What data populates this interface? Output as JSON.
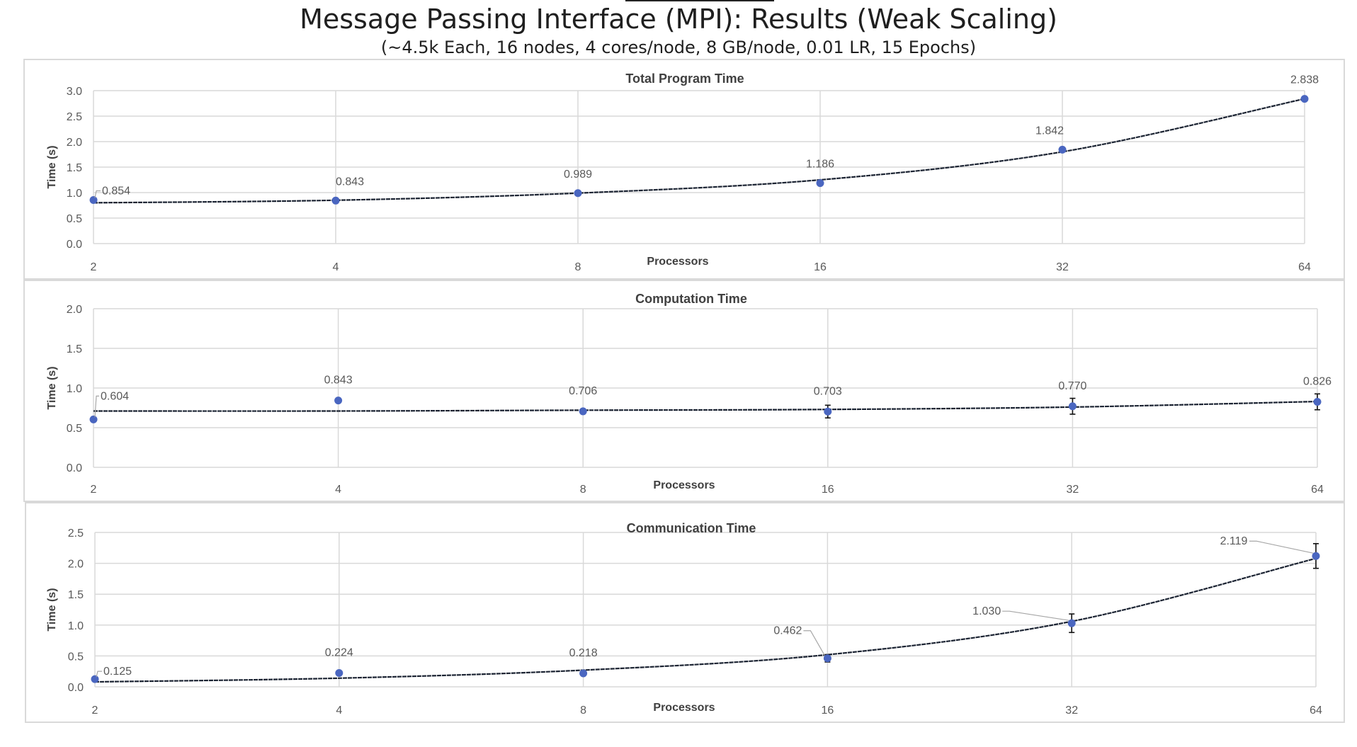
{
  "header": {
    "title": "Message Passing Interface (MPI): Results (Weak Scaling)",
    "subtitle": "(~4.5k Each, 16 nodes, 4 cores/node, 8 GB/node, 0.01 LR, 15 Epochs)"
  },
  "colors": {
    "marker": "#4a66c0",
    "trend": "#1c2433",
    "grid": "#d9d9d9",
    "text": "#595959",
    "title": "#404040",
    "frame": "#d9d9d9"
  },
  "chart_data": [
    {
      "type": "scatter",
      "title": "Total Program Time",
      "xlabel": "Processors",
      "ylabel": "Time (s)",
      "x": [
        2,
        4,
        8,
        16,
        32,
        64
      ],
      "x_tick_labels": [
        "2",
        "4",
        "8",
        "16",
        "32",
        "64"
      ],
      "y": [
        0.854,
        0.843,
        0.989,
        1.186,
        1.842,
        2.838
      ],
      "data_labels": [
        "0.854",
        "0.843",
        "0.989",
        "1.186",
        "1.842",
        "2.838"
      ],
      "y_ticks": [
        "0.0",
        "0.5",
        "1.0",
        "1.5",
        "2.0",
        "2.5",
        "3.0"
      ],
      "ylim": [
        0,
        3.0
      ],
      "x_scale": "log2",
      "trendline": [
        0.8,
        0.85,
        0.99,
        1.25,
        1.8,
        2.84
      ],
      "error_bars": [
        0,
        0,
        0,
        0,
        0,
        0
      ],
      "grid": true
    },
    {
      "type": "scatter",
      "title": "Computation Time",
      "xlabel": "Processors",
      "ylabel": "Time (s)",
      "x": [
        2,
        4,
        8,
        16,
        32,
        64
      ],
      "x_tick_labels": [
        "2",
        "4",
        "8",
        "16",
        "32",
        "64"
      ],
      "y": [
        0.604,
        0.843,
        0.706,
        0.703,
        0.77,
        0.826
      ],
      "data_labels": [
        "0.604",
        "0.843",
        "0.706",
        "0.703",
        "0.770",
        "0.826"
      ],
      "y_ticks": [
        "0.0",
        "0.5",
        "1.0",
        "1.5",
        "2.0"
      ],
      "ylim": [
        0,
        2.0
      ],
      "x_scale": "log2",
      "trendline": [
        0.71,
        0.71,
        0.72,
        0.73,
        0.76,
        0.83
      ],
      "error_bars": [
        0,
        0,
        0,
        0.08,
        0.1,
        0.1
      ],
      "grid": true
    },
    {
      "type": "scatter",
      "title": "Communication Time",
      "xlabel": "Processors",
      "ylabel": "Time (s)",
      "x": [
        2,
        4,
        8,
        16,
        32,
        64
      ],
      "x_tick_labels": [
        "2",
        "4",
        "8",
        "16",
        "32",
        "64"
      ],
      "y": [
        0.125,
        0.224,
        0.218,
        0.462,
        1.03,
        2.119
      ],
      "data_labels": [
        "0.125",
        "0.224",
        "0.218",
        "0.462",
        "1.030",
        "2.119"
      ],
      "y_ticks": [
        "0.0",
        "0.5",
        "1.0",
        "1.5",
        "2.0",
        "2.5"
      ],
      "ylim": [
        0,
        2.5
      ],
      "x_scale": "log2",
      "trendline": [
        0.08,
        0.14,
        0.27,
        0.52,
        1.06,
        2.08
      ],
      "error_bars": [
        0,
        0,
        0,
        0.06,
        0.15,
        0.2
      ],
      "grid": true
    }
  ]
}
